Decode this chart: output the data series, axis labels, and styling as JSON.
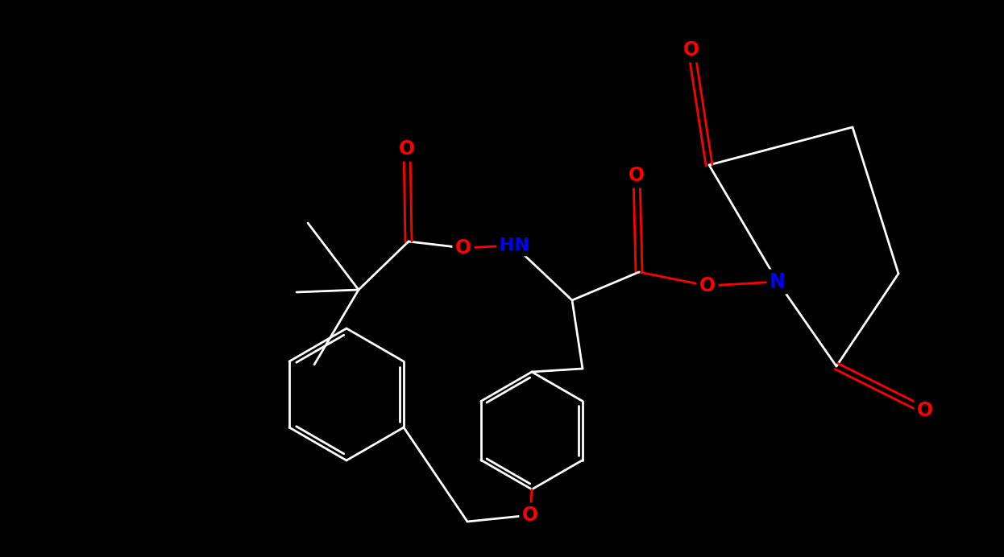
{
  "background_color": "#000000",
  "bond_color": "#ffffff",
  "atom_colors": {
    "O": "#ff0000",
    "N": "#0000ff",
    "C": "#ffffff",
    "H": "#ffffff"
  },
  "figsize": [
    12.46,
    6.92
  ],
  "dpi": 100
}
